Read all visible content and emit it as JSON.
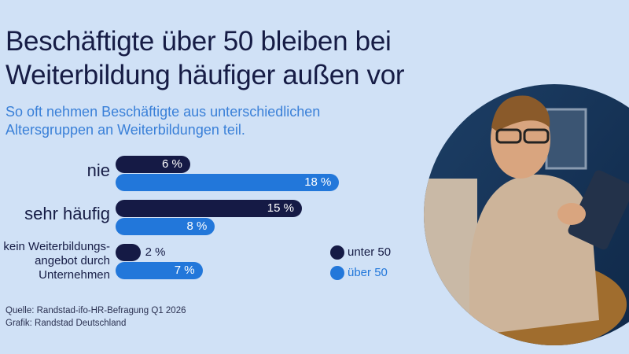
{
  "title": {
    "line1": "Beschäftigte über 50 bleiben bei",
    "line2": "Weiterbildung häufiger außen vor"
  },
  "subtitle": {
    "line1": "So oft nehmen Beschäftigte aus unterschiedlichen",
    "line2": "Altersgruppen an Weiterbildungen teil."
  },
  "colors": {
    "background": "#d0e1f6",
    "unter_50": "#151a45",
    "ueber_50": "#2277da",
    "title": "#161c45",
    "subtitle": "#3a80d8"
  },
  "chart_data": {
    "type": "bar",
    "orientation": "horizontal",
    "categories": [
      "nie",
      "sehr häufig",
      "kein Weiterbildungs-angebot durch Unternehmen"
    ],
    "category_lines": [
      [
        "nie"
      ],
      [
        "sehr häufig"
      ],
      [
        "kein Weiterbildungs-",
        "angebot durch",
        "Unternehmen"
      ]
    ],
    "series": [
      {
        "name": "unter 50",
        "values": [
          6,
          15,
          2
        ],
        "labels": [
          "6 %",
          "15 %",
          "2 %"
        ]
      },
      {
        "name": "über 50",
        "values": [
          18,
          8,
          7
        ],
        "labels": [
          "18 %",
          "8 %",
          "7 %"
        ]
      }
    ],
    "unit": "%",
    "legend": "right",
    "grid": false
  },
  "source": {
    "line1": "Quelle: Randstad-ifo-HR-Befragung Q1 2026",
    "line2": "Grafik: Randstad Deutschland"
  },
  "photo": {
    "subject": "man with glasses using tablet"
  }
}
